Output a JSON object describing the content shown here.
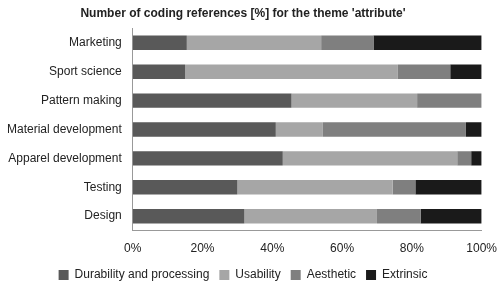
{
  "chart_data": {
    "type": "bar",
    "title": "Number of coding references [%] for the theme 'attribute'",
    "orientation": "horizontal",
    "stacked": true,
    "grid": false,
    "legend": "bottom",
    "categories": [
      "Marketing",
      "Sport science",
      "Pattern making",
      "Material development",
      "Apparel development",
      "Testing",
      "Design"
    ],
    "series": [
      {
        "name": "Durability and processing",
        "color": "#595959",
        "values": [
          15.5,
          15,
          45.5,
          41,
          43,
          30,
          32
        ]
      },
      {
        "name": "Usability",
        "color": "#a6a6a6",
        "values": [
          38.5,
          61,
          36,
          13.5,
          50,
          44.5,
          38
        ]
      },
      {
        "name": "Aesthetic",
        "color": "#7f7f7f",
        "values": [
          15,
          15,
          18.5,
          41,
          4,
          6.5,
          12.5
        ]
      },
      {
        "name": "Extrinsic",
        "color": "#1a1a1a",
        "values": [
          31,
          9,
          0,
          4.5,
          3,
          19,
          17.5
        ]
      }
    ],
    "xlim": [
      0,
      100
    ],
    "xticks": [
      {
        "value": 0,
        "label": "0%"
      },
      {
        "value": 20,
        "label": "20%"
      },
      {
        "value": 40,
        "label": "40%"
      },
      {
        "value": 60,
        "label": "60%"
      },
      {
        "value": 80,
        "label": "80%"
      },
      {
        "value": 100,
        "label": "100%"
      }
    ]
  }
}
